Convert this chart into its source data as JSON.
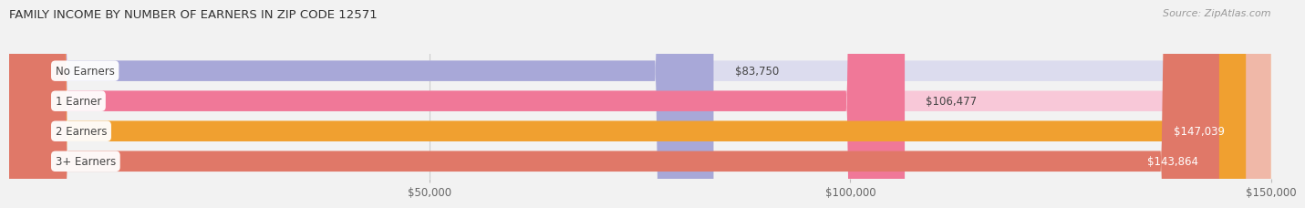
{
  "title": "FAMILY INCOME BY NUMBER OF EARNERS IN ZIP CODE 12571",
  "source": "Source: ZipAtlas.com",
  "categories": [
    "No Earners",
    "1 Earner",
    "2 Earners",
    "3+ Earners"
  ],
  "values": [
    83750,
    106477,
    147039,
    143864
  ],
  "bar_colors": [
    "#a8a8d8",
    "#f07898",
    "#f0a030",
    "#e07868"
  ],
  "bar_bg_colors": [
    "#dcdcee",
    "#f8c8d8",
    "#f8d8a0",
    "#f0b8a8"
  ],
  "value_labels": [
    "$83,750",
    "$106,477",
    "$147,039",
    "$143,864"
  ],
  "value_inside": [
    false,
    false,
    true,
    true
  ],
  "xlim_data": [
    0,
    150000
  ],
  "xticks": [
    50000,
    100000,
    150000
  ],
  "xtick_labels": [
    "$50,000",
    "$100,000",
    "$150,000"
  ],
  "background_color": "#f2f2f2",
  "bar_height": 0.68,
  "bar_gap": 0.08,
  "figsize": [
    14.06,
    2.33
  ],
  "dpi": 100,
  "title_fontsize": 9.5,
  "source_fontsize": 8,
  "tick_fontsize": 8.5,
  "label_fontsize": 8.5,
  "value_fontsize": 8.5
}
